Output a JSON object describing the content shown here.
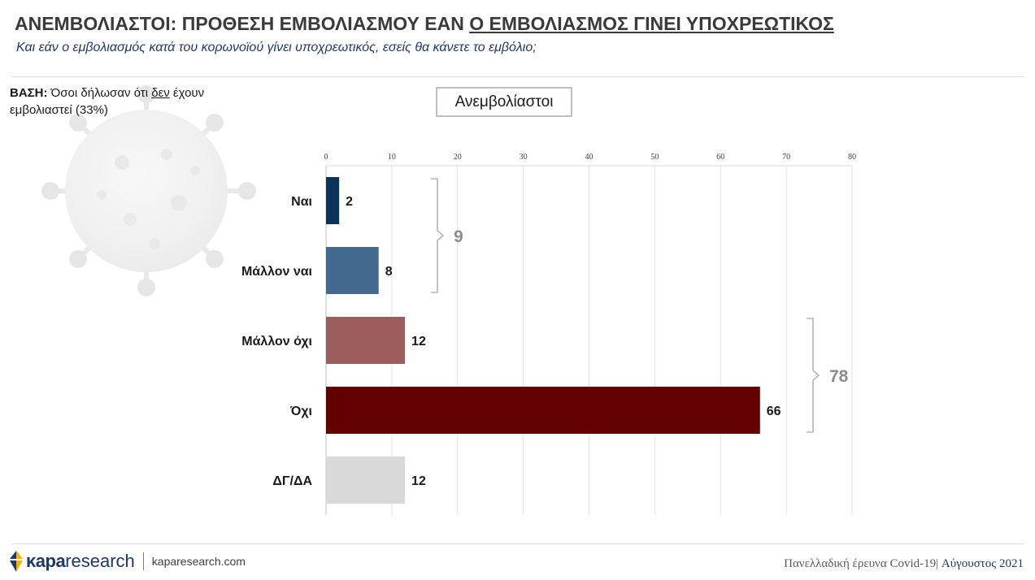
{
  "header": {
    "title_part1": "ΑΝΕΜΒΟΛΙΑΣΤΟΙ: ΠΡΟΘΕΣΗ ΕΜΒΟΛΙΑΣΜΟΥ ΕΑΝ ",
    "title_part2": "Ο ΕΜΒΟΛΙΑΣΜΟΣ ΓΙΝΕΙ ΥΠΟΧΡΕΩΤΙΚΟΣ",
    "subtitle": "Και εάν ο εμβολιασμός κατά του κορωνοϊού γίνει υποχρεωτικός, εσείς θα κάνετε το εμβόλιο;"
  },
  "base": {
    "label": "ΒΑΣΗ:",
    "text1": " Όσοι δήλωσαν ότι ",
    "text2": "δεν",
    "text3": " έχουν εμβολιαστεί (33%)"
  },
  "footer": {
    "brand_kapa": "κapa",
    "brand_research": "research",
    "site": "kaparesearch.com",
    "survey": "Πανελλαδική έρευνα Covid-19| ",
    "month": "Αύγουστος 2021"
  },
  "chart_data": {
    "type": "bar",
    "orientation": "horizontal",
    "title": "Ανεμβολίαστοι",
    "categories": [
      "Ναι",
      "Μάλλον ναι",
      "Μάλλον όχι",
      "Όχι",
      "ΔΓ/ΔΑ"
    ],
    "values": [
      2,
      8,
      12,
      66,
      12
    ],
    "colors": [
      "#0e3358",
      "#43698f",
      "#9c5d5d",
      "#620000",
      "#d9d9d9"
    ],
    "xlim": [
      0,
      80
    ],
    "xticks": [
      0,
      10,
      20,
      30,
      40,
      50,
      60,
      70,
      80
    ],
    "grid": true,
    "xaxis_position": "top",
    "groups": [
      {
        "label": "9",
        "from_category": "Ναι",
        "to_category": "Μάλλον ναι"
      },
      {
        "label": "78",
        "from_category": "Μάλλον όχι",
        "to_category": "Όχι"
      }
    ]
  }
}
